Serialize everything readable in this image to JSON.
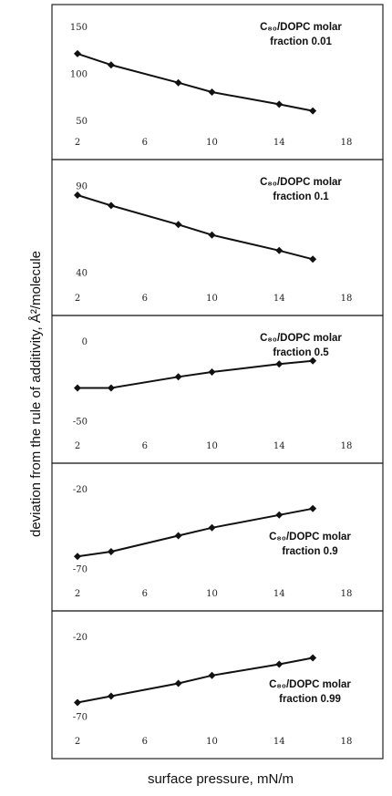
{
  "figure": {
    "xlabel": "surface pressure, mN/m",
    "ylabel": "deviation from the rule of additivity, Å²/molecule"
  },
  "chart_data": [
    {
      "type": "line",
      "annotation_line1": "C₈₀/DOPC molar",
      "annotation_line2": "fraction 0.01",
      "x": [
        2,
        4,
        8,
        10,
        14,
        16
      ],
      "values": [
        122,
        110,
        91,
        81,
        68,
        61
      ],
      "xticks": [
        "2",
        "6",
        "10",
        "14",
        "18"
      ],
      "yticks": [
        "50",
        "100",
        "150"
      ],
      "xlim": [
        2,
        18
      ],
      "ylim": [
        45,
        155
      ]
    },
    {
      "type": "line",
      "annotation_line1": "C₈₀/DOPC molar",
      "annotation_line2": "fraction 0.1",
      "x": [
        2,
        4,
        8,
        10,
        14,
        16
      ],
      "values": [
        85,
        79,
        68,
        62,
        53,
        48
      ],
      "xticks": [
        "2",
        "6",
        "10",
        "14",
        "18"
      ],
      "yticks": [
        "40",
        "90"
      ],
      "xlim": [
        2,
        18
      ],
      "ylim": [
        35,
        95
      ]
    },
    {
      "type": "line",
      "annotation_line1": "C₈₀/DOPC molar",
      "annotation_line2": "fraction 0.5",
      "x": [
        2,
        4,
        8,
        10,
        14,
        16
      ],
      "values": [
        -29,
        -29,
        -22,
        -19,
        -14,
        -12
      ],
      "xticks": [
        "2",
        "6",
        "10",
        "14",
        "18"
      ],
      "yticks": [
        "-50",
        "0"
      ],
      "xlim": [
        2,
        18
      ],
      "ylim": [
        -55,
        5
      ]
    },
    {
      "type": "line",
      "annotation_line1": "C₈₀/DOPC molar",
      "annotation_line2": "fraction 0.9",
      "x": [
        2,
        4,
        8,
        10,
        14,
        16
      ],
      "values": [
        -62,
        -59,
        -49,
        -44,
        -36,
        -32
      ],
      "xticks": [
        "2",
        "6",
        "10",
        "14",
        "18"
      ],
      "yticks": [
        "-70",
        "-20"
      ],
      "xlim": [
        2,
        18
      ],
      "ylim": [
        -75,
        -15
      ]
    },
    {
      "type": "line",
      "annotation_line1": "C₈₀/DOPC molar",
      "annotation_line2": "fraction 0.99",
      "x": [
        2,
        4,
        8,
        10,
        14,
        16
      ],
      "values": [
        -61,
        -57,
        -49,
        -44,
        -37,
        -33
      ],
      "xticks": [
        "2",
        "6",
        "10",
        "14",
        "18"
      ],
      "yticks": [
        "-70",
        "-20"
      ],
      "xlim": [
        2,
        18
      ],
      "ylim": [
        -75,
        -15
      ]
    }
  ]
}
